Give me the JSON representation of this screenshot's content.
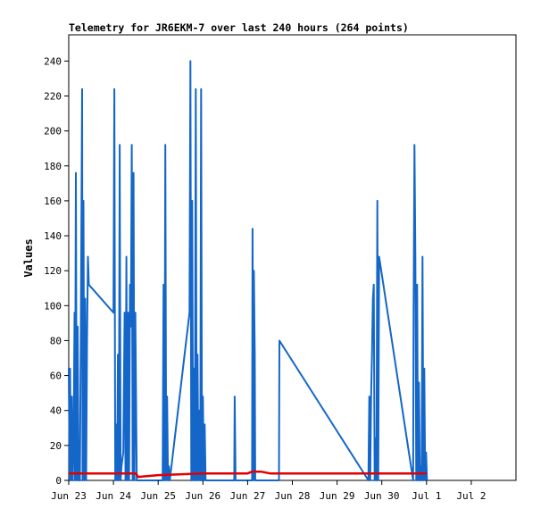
{
  "chart_data": {
    "type": "line",
    "title": "Telemetry for JR6EKM-7 over last 240 hours (264 points)",
    "xlabel": "",
    "ylabel": "Values",
    "xlim": [
      0,
      10
    ],
    "ylim": [
      0,
      255
    ],
    "x_tick_labels": [
      "Jun 23",
      "Jun 24",
      "Jun 25",
      "Jun 26",
      "Jun 27",
      "Jun 28",
      "Jun 29",
      "Jun 30",
      "Jul 1",
      "Jul 2"
    ],
    "y_ticks": [
      0,
      20,
      40,
      60,
      80,
      100,
      120,
      140,
      160,
      180,
      200,
      220,
      240
    ],
    "grid": false,
    "colors": {
      "blue": "#1466c8",
      "red": "#e00000",
      "frame": "#000000",
      "background": "#ffffff"
    },
    "series": [
      {
        "color": "#1466c8",
        "points": [
          [
            0.0,
            64
          ],
          [
            0.02,
            0
          ],
          [
            0.03,
            64
          ],
          [
            0.05,
            0
          ],
          [
            0.07,
            48
          ],
          [
            0.09,
            0
          ],
          [
            0.11,
            24
          ],
          [
            0.13,
            96
          ],
          [
            0.14,
            0
          ],
          [
            0.16,
            176
          ],
          [
            0.18,
            0
          ],
          [
            0.2,
            88
          ],
          [
            0.22,
            0
          ],
          [
            0.25,
            0
          ],
          [
            0.27,
            80
          ],
          [
            0.3,
            224
          ],
          [
            0.31,
            0
          ],
          [
            0.33,
            160
          ],
          [
            0.35,
            0
          ],
          [
            0.37,
            104
          ],
          [
            0.39,
            0
          ],
          [
            0.41,
            80
          ],
          [
            0.43,
            128
          ],
          [
            0.45,
            112
          ],
          [
            1.0,
            96
          ],
          [
            1.02,
            224
          ],
          [
            1.04,
            0
          ],
          [
            1.06,
            32
          ],
          [
            1.08,
            0
          ],
          [
            1.1,
            72
          ],
          [
            1.12,
            0
          ],
          [
            1.14,
            192
          ],
          [
            1.16,
            0
          ],
          [
            1.18,
            8
          ],
          [
            1.22,
            16
          ],
          [
            1.25,
            96
          ],
          [
            1.27,
            0
          ],
          [
            1.29,
            128
          ],
          [
            1.31,
            0
          ],
          [
            1.33,
            96
          ],
          [
            1.35,
            0
          ],
          [
            1.37,
            112
          ],
          [
            1.39,
            88
          ],
          [
            1.41,
            192
          ],
          [
            1.43,
            0
          ],
          [
            1.45,
            176
          ],
          [
            1.47,
            0
          ],
          [
            1.49,
            96
          ],
          [
            1.52,
            0
          ],
          [
            2.1,
            0
          ],
          [
            2.12,
            112
          ],
          [
            2.14,
            0
          ],
          [
            2.16,
            192
          ],
          [
            2.18,
            0
          ],
          [
            2.2,
            48
          ],
          [
            2.22,
            0
          ],
          [
            2.24,
            8
          ],
          [
            2.26,
            0
          ],
          [
            2.7,
            96
          ],
          [
            2.72,
            240
          ],
          [
            2.74,
            0
          ],
          [
            2.76,
            160
          ],
          [
            2.78,
            0
          ],
          [
            2.8,
            64
          ],
          [
            2.82,
            0
          ],
          [
            2.84,
            224
          ],
          [
            2.86,
            0
          ],
          [
            2.88,
            72
          ],
          [
            2.9,
            0
          ],
          [
            2.92,
            40
          ],
          [
            2.94,
            0
          ],
          [
            2.96,
            224
          ],
          [
            2.98,
            0
          ],
          [
            3.0,
            48
          ],
          [
            3.02,
            0
          ],
          [
            3.04,
            32
          ],
          [
            3.06,
            0
          ],
          [
            3.7,
            0
          ],
          [
            3.71,
            48
          ],
          [
            3.73,
            0
          ],
          [
            4.1,
            0
          ],
          [
            4.11,
            144
          ],
          [
            4.13,
            0
          ],
          [
            4.14,
            120
          ],
          [
            4.16,
            72
          ],
          [
            4.17,
            0
          ],
          [
            4.7,
            0
          ],
          [
            4.71,
            80
          ],
          [
            6.7,
            0
          ],
          [
            6.72,
            48
          ],
          [
            6.74,
            0
          ],
          [
            6.76,
            48
          ],
          [
            6.78,
            72
          ],
          [
            6.8,
            104
          ],
          [
            6.82,
            112
          ],
          [
            6.84,
            0
          ],
          [
            6.86,
            24
          ],
          [
            6.88,
            0
          ],
          [
            6.9,
            160
          ],
          [
            6.92,
            0
          ],
          [
            6.94,
            128
          ],
          [
            7.7,
            0
          ],
          [
            7.71,
            96
          ],
          [
            7.73,
            192
          ],
          [
            7.75,
            128
          ],
          [
            7.77,
            0
          ],
          [
            7.79,
            112
          ],
          [
            7.81,
            0
          ],
          [
            7.83,
            56
          ],
          [
            7.85,
            0
          ],
          [
            7.87,
            8
          ],
          [
            7.89,
            0
          ],
          [
            7.91,
            128
          ],
          [
            7.93,
            0
          ],
          [
            7.95,
            64
          ],
          [
            7.97,
            0
          ],
          [
            7.99,
            16
          ],
          [
            8.01,
            0
          ]
        ]
      },
      {
        "color": "#e00000",
        "points": [
          [
            0.0,
            4
          ],
          [
            1.5,
            4
          ],
          [
            1.55,
            2
          ],
          [
            2.0,
            3
          ],
          [
            3.0,
            4
          ],
          [
            4.0,
            4
          ],
          [
            4.1,
            5
          ],
          [
            4.3,
            5
          ],
          [
            4.5,
            4
          ],
          [
            8.0,
            4
          ]
        ]
      }
    ]
  }
}
